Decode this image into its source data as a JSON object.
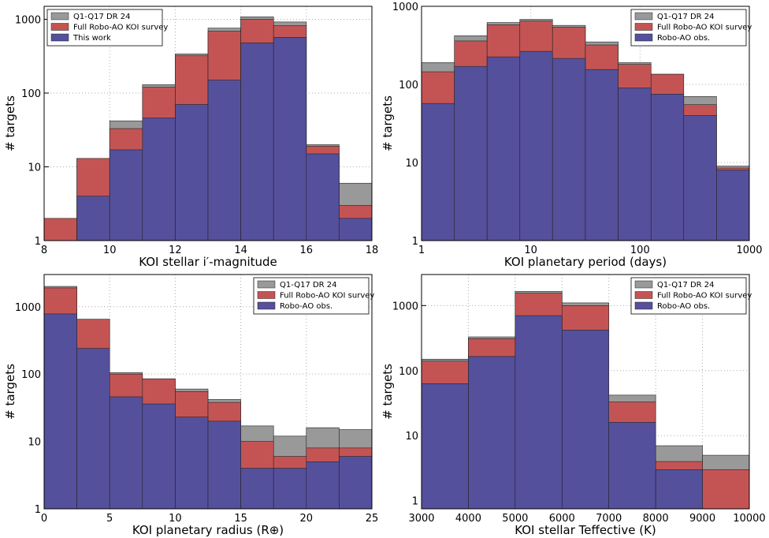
{
  "chart_data": [
    {
      "type": "histogram",
      "xlabel": "KOI stellar i′-magnitude",
      "ylabel": "# targets",
      "bins": [
        8,
        9,
        10,
        11,
        12,
        13,
        14,
        15,
        16,
        17,
        18
      ],
      "series": [
        {
          "name": "Q1-Q17 DR 24",
          "color": "#999999",
          "values": [
            2,
            13,
            42,
            130,
            340,
            760,
            1080,
            920,
            20,
            6
          ]
        },
        {
          "name": "Full Robo-AO KOI survey",
          "color": "#c45454",
          "values": [
            2,
            13,
            33,
            120,
            320,
            690,
            1000,
            820,
            19,
            3
          ]
        },
        {
          "name": "This work",
          "color": "#55509c",
          "values": [
            null,
            4,
            17,
            46,
            70,
            150,
            480,
            570,
            15,
            2
          ]
        }
      ],
      "xlim": [
        8,
        18
      ],
      "xticks": [
        8,
        10,
        12,
        14,
        16,
        18
      ],
      "ylim": [
        1,
        1500
      ],
      "yticks": [
        1,
        10,
        100,
        1000
      ],
      "ylog": true,
      "xlog": false,
      "grid": true,
      "legend": "upper left"
    },
    {
      "type": "histogram",
      "xlabel": "KOI planetary period (days)",
      "ylabel": "# targets",
      "bins": [
        1,
        2,
        3.98,
        7.94,
        15.8,
        31.6,
        63.1,
        126,
        251,
        501,
        1000
      ],
      "series": [
        {
          "name": "Q1-Q17 DR 24",
          "color": "#999999",
          "values": [
            190,
            420,
            620,
            680,
            570,
            350,
            190,
            135,
            70,
            9
          ]
        },
        {
          "name": "Full Robo-AO KOI survey",
          "color": "#c45454",
          "values": [
            145,
            360,
            580,
            650,
            540,
            320,
            180,
            135,
            55,
            8.5
          ]
        },
        {
          "name": "Robo-AO obs.",
          "color": "#55509c",
          "values": [
            57,
            170,
            225,
            265,
            215,
            155,
            90,
            75,
            40,
            8
          ]
        }
      ],
      "xlim": [
        1,
        1000
      ],
      "xticks": [
        1,
        10,
        100,
        1000
      ],
      "ylim": [
        1,
        1000
      ],
      "yticks": [
        1,
        10,
        100,
        1000
      ],
      "ylog": true,
      "xlog": true,
      "grid": true,
      "legend": "upper right"
    },
    {
      "type": "histogram",
      "xlabel": "KOI planetary radius (R⊕)",
      "ylabel": "# targets",
      "bins": [
        0,
        2.5,
        5,
        7.5,
        10,
        12.5,
        15,
        17.5,
        20,
        22.5,
        25
      ],
      "series": [
        {
          "name": "Q1-Q17 DR 24",
          "color": "#999999",
          "values": [
            2000,
            650,
            105,
            85,
            60,
            42,
            17,
            12,
            16,
            15
          ]
        },
        {
          "name": "Full Robo-AO KOI survey",
          "color": "#c45454",
          "values": [
            1900,
            650,
            100,
            85,
            55,
            38,
            10,
            6,
            8,
            8
          ]
        },
        {
          "name": "Robo-AO obs.",
          "color": "#55509c",
          "values": [
            780,
            240,
            46,
            36,
            23,
            20,
            4,
            4,
            5,
            6
          ]
        }
      ],
      "xlim": [
        0,
        25
      ],
      "xticks": [
        0,
        5,
        10,
        15,
        20,
        25
      ],
      "ylim": [
        1,
        3000
      ],
      "yticks": [
        1,
        10,
        100,
        1000
      ],
      "ylog": true,
      "xlog": false,
      "grid": true,
      "legend": "upper right"
    },
    {
      "type": "histogram",
      "xlabel": "KOI stellar Teffective (K)",
      "ylabel": "# targets",
      "bins": [
        3000,
        4000,
        5000,
        6000,
        7000,
        8000,
        9000,
        10000
      ],
      "series": [
        {
          "name": "Q1-Q17 DR 24",
          "color": "#999999",
          "values": [
            150,
            330,
            1650,
            1100,
            42,
            7,
            5
          ]
        },
        {
          "name": "Full Robo-AO KOI survey",
          "color": "#c45454",
          "values": [
            140,
            310,
            1550,
            1000,
            33,
            4,
            3
          ]
        },
        {
          "name": "Robo-AO obs.",
          "color": "#55509c",
          "values": [
            63,
            165,
            700,
            420,
            16,
            3,
            null
          ]
        }
      ],
      "xlim": [
        3000,
        10000
      ],
      "xticks": [
        3000,
        4000,
        5000,
        6000,
        7000,
        8000,
        9000,
        10000
      ],
      "ylim": [
        0.75,
        3000
      ],
      "yticks": [
        1,
        10,
        100,
        1000
      ],
      "ylog": true,
      "xlog": false,
      "grid": true,
      "legend": "upper right"
    }
  ]
}
